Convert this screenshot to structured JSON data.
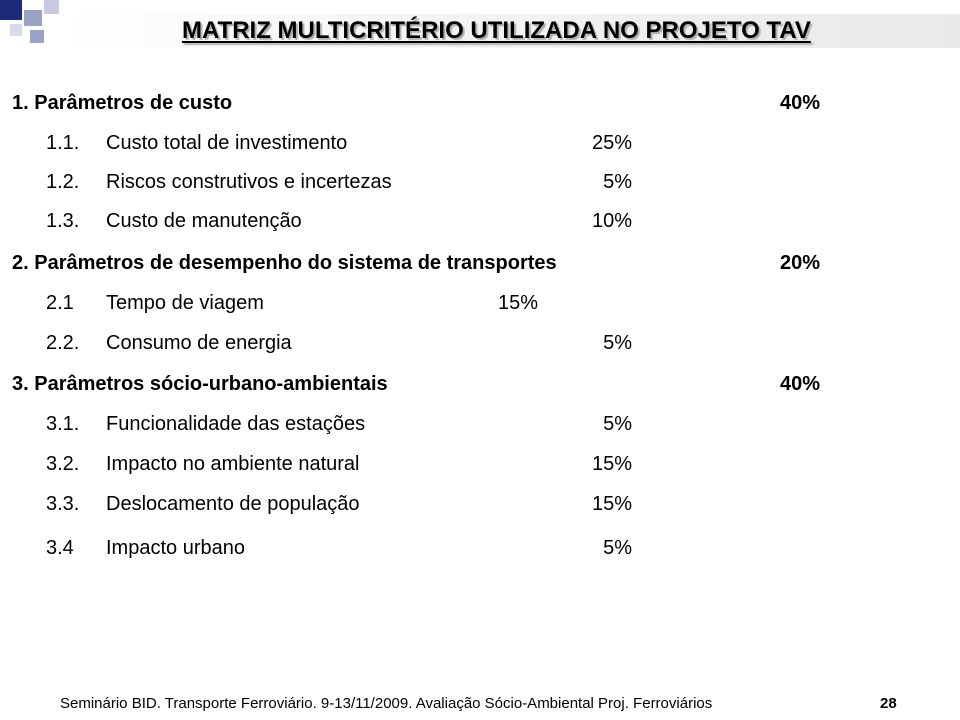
{
  "slide": {
    "title": "MATRIZ MULTICRITÉRIO UTILIZADA NO PROJETO TAV",
    "groups": [
      {
        "label": "1. Parâmetros de custo",
        "percent": "40%",
        "items": [
          {
            "number": "1.1.",
            "label": "Custo total de investimento",
            "percent": "25%"
          },
          {
            "number": "1.2.",
            "label": "Riscos construtivos e incertezas",
            "percent": "5%"
          },
          {
            "number": "1.3.",
            "label": "Custo de manutenção",
            "percent": "10%"
          }
        ]
      },
      {
        "label": "2. Parâmetros de desempenho do sistema de transportes",
        "percent": "20%",
        "items": [
          {
            "number": "2.1",
            "label": "Tempo de viagem",
            "percent": "15%"
          },
          {
            "number": "2.2.",
            "label": "Consumo de energia",
            "percent": "5%"
          }
        ]
      },
      {
        "label": "3. Parâmetros sócio-urbano-ambientais",
        "percent": "40%",
        "items": [
          {
            "number": "3.1.",
            "label": "Funcionalidade das estações",
            "percent": "5%"
          },
          {
            "number": "3.2.",
            "label": "Impacto no ambiente natural",
            "percent": "15%"
          },
          {
            "number": "3.3.",
            "label": "Deslocamento de população",
            "percent": "15%"
          },
          {
            "number": "3.4",
            "label": "Impacto urbano",
            "percent": "5%"
          }
        ]
      }
    ],
    "footer": "Seminário BID. Transporte Ferroviário. 9-13/11/2009. Avaliação Sócio-Ambiental Proj. Ferroviários",
    "page_number": "28",
    "colors": {
      "accent_dark": "#1c2a7c",
      "accent_light": "#9aa2c8"
    }
  }
}
